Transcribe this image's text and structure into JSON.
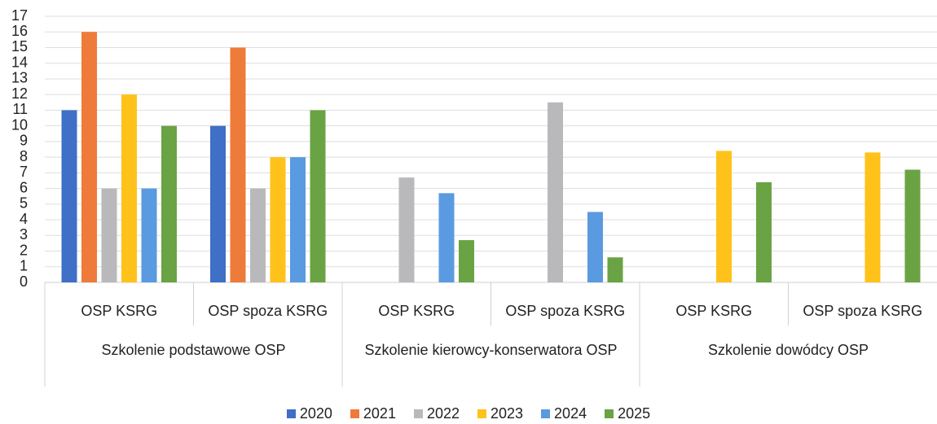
{
  "chart_data": {
    "type": "bar",
    "groups": [
      {
        "name": "Szkolenie podstawowe OSP",
        "categories": [
          "OSP KSRG",
          "OSP spoza KSRG"
        ]
      },
      {
        "name": "Szkolenie kierowcy-konserwatora OSP",
        "categories": [
          "OSP KSRG",
          "OSP spoza KSRG"
        ]
      },
      {
        "name": "Szkolenie dowódcy OSP",
        "categories": [
          "OSP KSRG",
          "OSP spoza KSRG"
        ]
      }
    ],
    "series": [
      {
        "name": "2020",
        "color": "#3f6fc6",
        "values": [
          11,
          10,
          null,
          null,
          null,
          null
        ]
      },
      {
        "name": "2021",
        "color": "#ee7b3a",
        "values": [
          16,
          15,
          null,
          null,
          null,
          null
        ]
      },
      {
        "name": "2022",
        "color": "#b9b9bb",
        "values": [
          6,
          6,
          6.7,
          11.5,
          null,
          null
        ]
      },
      {
        "name": "2023",
        "color": "#ffc21a",
        "values": [
          12,
          8,
          null,
          null,
          8.4,
          8.3
        ]
      },
      {
        "name": "2024",
        "color": "#5a9ae0",
        "values": [
          6,
          8,
          5.7,
          4.5,
          null,
          null
        ]
      },
      {
        "name": "2025",
        "color": "#6aa344",
        "values": [
          10,
          11,
          2.7,
          1.6,
          6.4,
          7.2
        ]
      }
    ],
    "ylim": [
      0,
      17
    ],
    "yticks": [
      0,
      1,
      2,
      3,
      4,
      5,
      6,
      7,
      8,
      9,
      10,
      11,
      12,
      13,
      14,
      15,
      16,
      17
    ],
    "grid": true
  }
}
